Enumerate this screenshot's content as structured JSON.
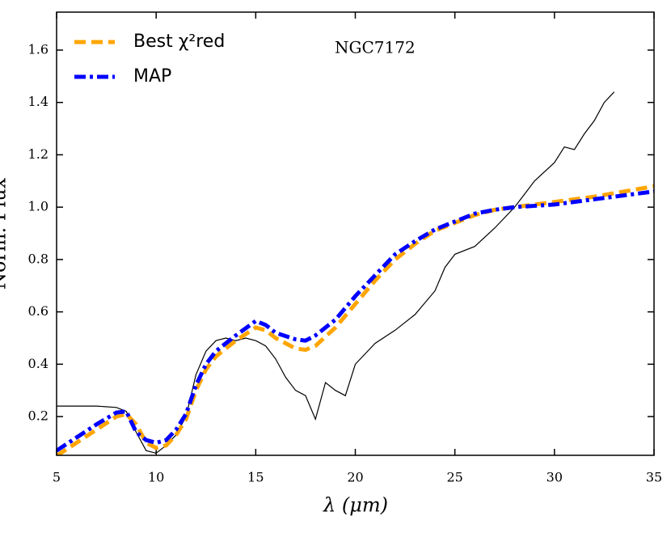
{
  "chart_data": {
    "type": "line",
    "annotation": "NGC7172",
    "xlabel": "λ (μm)",
    "ylabel": "Norm. Flux",
    "xlim": [
      5,
      35
    ],
    "xticks": [
      5,
      10,
      15,
      20,
      25,
      30,
      35
    ],
    "ylim": [
      0.052,
      1.745
    ],
    "yticks": [
      0.2,
      0.4,
      0.6,
      0.8,
      {
        "value": 1,
        "label": "1.0"
      },
      1.2,
      1.4,
      1.6
    ],
    "observed": {
      "color": "#000000",
      "x": [
        5,
        6,
        7,
        8,
        8.5,
        9,
        9.5,
        10,
        10.5,
        11,
        11.5,
        12,
        12.5,
        13,
        13.5,
        14,
        14.5,
        15,
        15.5,
        16,
        16.5,
        17,
        17.5,
        18,
        18.5,
        19,
        19.5,
        20,
        20.5,
        21,
        22,
        23,
        24,
        24.5,
        25,
        26,
        27,
        28,
        28.5,
        29,
        30,
        30.5,
        31,
        31.5,
        32,
        32.5,
        33
      ],
      "values": [
        0.24,
        0.24,
        0.24,
        0.235,
        0.22,
        0.14,
        0.07,
        0.06,
        0.09,
        0.13,
        0.2,
        0.36,
        0.45,
        0.49,
        0.5,
        0.49,
        0.5,
        0.49,
        0.47,
        0.42,
        0.35,
        0.3,
        0.28,
        0.19,
        0.33,
        0.3,
        0.28,
        0.4,
        0.44,
        0.48,
        0.53,
        0.59,
        0.68,
        0.77,
        0.82,
        0.85,
        0.92,
        1.0,
        1.05,
        1.1,
        1.17,
        1.23,
        1.22,
        1.28,
        1.33,
        1.4,
        1.44
      ]
    },
    "series": [
      {
        "name": "Best χ²red",
        "color": "#ffa500",
        "x": [
          5,
          6,
          7,
          8,
          8.5,
          9,
          9.5,
          10,
          10.5,
          11,
          11.5,
          12,
          12.5,
          13,
          14,
          15,
          15.5,
          16,
          17,
          17.5,
          18,
          19,
          20,
          21,
          22,
          23,
          24,
          25,
          26,
          27,
          28,
          30,
          32,
          35
        ],
        "values": [
          0.05,
          0.1,
          0.15,
          0.2,
          0.21,
          0.17,
          0.1,
          0.08,
          0.09,
          0.13,
          0.19,
          0.3,
          0.38,
          0.43,
          0.49,
          0.54,
          0.53,
          0.5,
          0.46,
          0.455,
          0.47,
          0.54,
          0.63,
          0.72,
          0.8,
          0.86,
          0.91,
          0.94,
          0.97,
          0.99,
          1.0,
          1.02,
          1.04,
          1.08
        ]
      },
      {
        "name": "MAP",
        "color": "#0000ff",
        "x": [
          5,
          6,
          7,
          8,
          8.5,
          9,
          9.5,
          10,
          10.5,
          11,
          11.5,
          12,
          12.5,
          13,
          14,
          15,
          15.5,
          16,
          17,
          17.5,
          18,
          19,
          20,
          21,
          22,
          23,
          24,
          25,
          26,
          27,
          28,
          30,
          32,
          35
        ],
        "values": [
          0.07,
          0.12,
          0.17,
          0.215,
          0.22,
          0.14,
          0.11,
          0.1,
          0.11,
          0.15,
          0.21,
          0.32,
          0.4,
          0.45,
          0.51,
          0.565,
          0.55,
          0.52,
          0.495,
          0.49,
          0.51,
          0.57,
          0.66,
          0.74,
          0.82,
          0.87,
          0.915,
          0.945,
          0.975,
          0.99,
          1.0,
          1.01,
          1.03,
          1.06
        ]
      }
    ]
  }
}
